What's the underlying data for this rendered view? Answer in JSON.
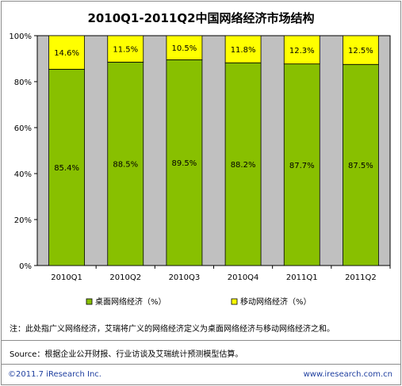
{
  "chart_data": {
    "type": "bar",
    "stacked": true,
    "title": "2010Q1-2011Q2中国网络经济市场结构",
    "categories": [
      "2010Q1",
      "2010Q2",
      "2010Q3",
      "2010Q4",
      "2011Q1",
      "2011Q2"
    ],
    "series": [
      {
        "name": "桌面网络经济（%）",
        "values": [
          85.4,
          88.5,
          89.5,
          88.2,
          87.7,
          87.5
        ],
        "labels": [
          "85.4%",
          "88.5%",
          "89.5%",
          "88.2%",
          "87.7%",
          "87.5%"
        ],
        "color": "#88c000"
      },
      {
        "name": "移动网络经济（%）",
        "values": [
          14.6,
          11.5,
          10.5,
          11.8,
          12.3,
          12.5
        ],
        "labels": [
          "14.6%",
          "11.5%",
          "10.5%",
          "11.8%",
          "12.3%",
          "12.5%"
        ],
        "color": "#ffff00"
      }
    ],
    "y_ticks": [
      "0%",
      "20%",
      "40%",
      "60%",
      "80%",
      "100%"
    ],
    "ylim": [
      0,
      100
    ],
    "legend_position": "bottom",
    "plot_background": "#c0c0c0"
  },
  "note": "注：此处指广义网络经济，艾瑞将广义的网络经济定义为桌面网络经济与移动网络经济之和。",
  "source": "Source：根据企业公开财报、行业访谈及艾瑞统计预测模型估算。",
  "footer": {
    "left": "©2011.7 iResearch Inc.",
    "right": "www.iresearch.com.cn"
  }
}
